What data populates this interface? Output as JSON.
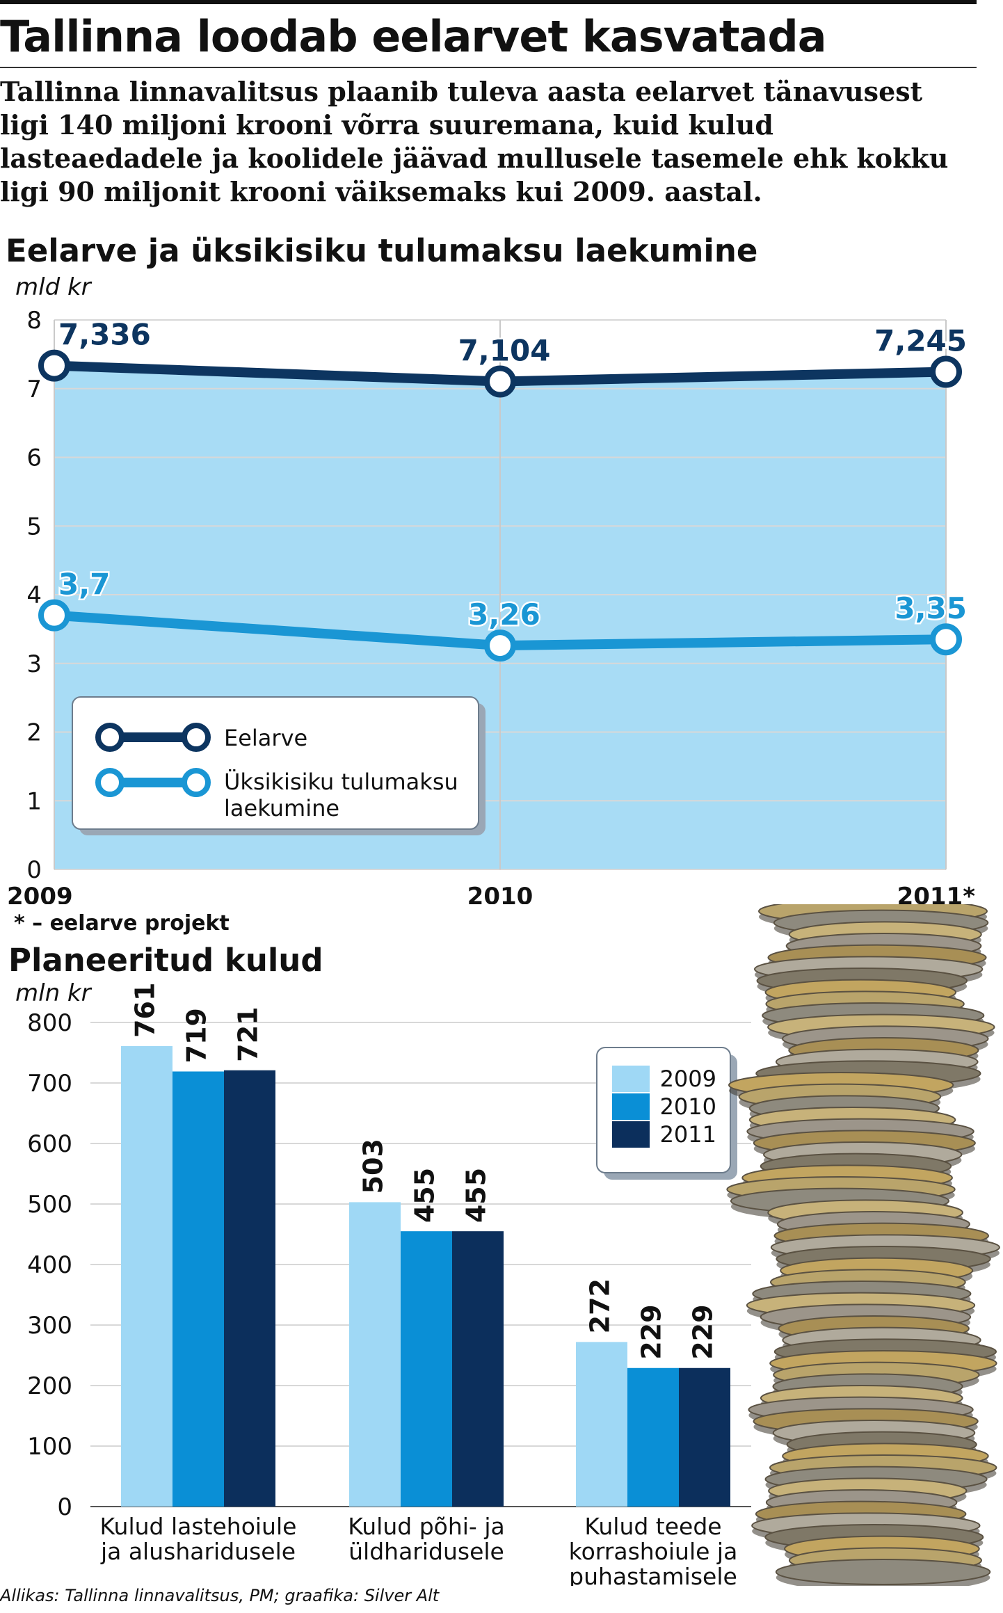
{
  "headline": "Tallinna loodab eelarvet kasvatada",
  "lead": "Tallinna linnavalitsus plaanib tuleva aasta eelarvet tänavusest ligi 140 miljoni krooni võrra suuremana, kuid kulud lasteaedadele ja koolidele jäävad mullusele tasemele ehk kokku ligi 90 miljonit krooni väiksemaks kui 2009. aastal.",
  "footnote": "* – eelarve projekt",
  "source": "Allikas: Tallinna linnavalitsus, PM; graafika: Silver Alt",
  "colors": {
    "eelarve": "#0d3560",
    "tulumaks": "#1a96d4",
    "area": "#a8dcf5",
    "bar_2009": "#9fd8f5",
    "bar_2010": "#0a8fd6",
    "bar_2011": "#0c2f5c"
  },
  "chart_data": [
    {
      "type": "line",
      "title": "Eelarve ja üksikisiku tulumaksu laekumine",
      "ylabel": "mld kr",
      "x": [
        "2009",
        "2010",
        "2011*"
      ],
      "ylim": [
        0,
        8
      ],
      "yticks": [
        "0",
        "1",
        "2",
        "3",
        "4",
        "5",
        "6",
        "7",
        "8"
      ],
      "grid": true,
      "legend_position": "bottom-left",
      "series": [
        {
          "name": "Eelarve",
          "values": [
            7.336,
            7.104,
            7.245
          ],
          "labels": [
            "7,336",
            "7,104",
            "7,245"
          ]
        },
        {
          "name": "Üksikisiku tulumaksu laekumine",
          "values": [
            3.7,
            3.26,
            3.35
          ],
          "labels": [
            "3,7",
            "3,26",
            "3,35"
          ]
        }
      ]
    },
    {
      "type": "bar",
      "title": "Planeeritud kulud",
      "ylabel": "mln kr",
      "categories": [
        "Kulud lastehoiule ja alusharidusele",
        "Kulud põhi- ja üldharidusele",
        "Kulud teede korrashoiule ja puhastamisele"
      ],
      "ylim": [
        0,
        800
      ],
      "yticks": [
        "0",
        "100",
        "200",
        "300",
        "400",
        "500",
        "600",
        "700",
        "800"
      ],
      "grid": true,
      "legend_position": "top-right",
      "series": [
        {
          "name": "2009",
          "values": [
            761,
            503,
            272
          ]
        },
        {
          "name": "2010",
          "values": [
            719,
            455,
            229
          ]
        },
        {
          "name": "2011",
          "values": [
            721,
            455,
            229
          ]
        }
      ]
    }
  ]
}
